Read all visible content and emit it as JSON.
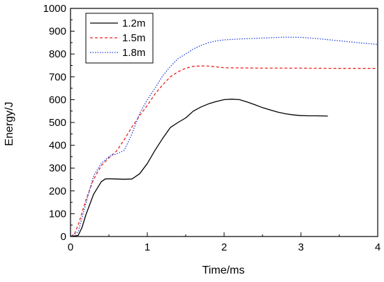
{
  "chart_data": {
    "type": "line",
    "title": "",
    "xlabel": "Time/ms",
    "ylabel": "Energy/J",
    "xlim": [
      0,
      4
    ],
    "ylim": [
      0,
      1000
    ],
    "xticks": [
      0,
      1,
      2,
      3,
      4
    ],
    "yticks": [
      0,
      100,
      200,
      300,
      400,
      500,
      600,
      700,
      800,
      900,
      1000
    ],
    "grid": false,
    "legend_position": "top-left",
    "series": [
      {
        "name": "1.2m",
        "color": "#000000",
        "dash": "solid",
        "x": [
          0.0,
          0.1,
          0.15,
          0.2,
          0.3,
          0.4,
          0.45,
          0.5,
          0.6,
          0.7,
          0.8,
          0.9,
          1.0,
          1.1,
          1.2,
          1.3,
          1.4,
          1.5,
          1.6,
          1.7,
          1.8,
          1.9,
          2.0,
          2.1,
          2.2,
          2.3,
          2.4,
          2.5,
          2.6,
          2.7,
          2.8,
          2.9,
          3.0,
          3.1,
          3.2,
          3.35
        ],
        "y": [
          0,
          5,
          40,
          95,
          185,
          240,
          252,
          253,
          252,
          251,
          252,
          275,
          320,
          378,
          430,
          478,
          500,
          520,
          550,
          568,
          582,
          592,
          600,
          602,
          600,
          590,
          578,
          565,
          555,
          545,
          538,
          533,
          530,
          529,
          529,
          528
        ]
      },
      {
        "name": "1.5m",
        "color": "#e8231f",
        "dash": "dashed",
        "x": [
          0.0,
          0.05,
          0.1,
          0.2,
          0.3,
          0.4,
          0.5,
          0.6,
          0.7,
          0.8,
          0.9,
          1.0,
          1.1,
          1.2,
          1.3,
          1.4,
          1.5,
          1.6,
          1.7,
          1.8,
          1.9,
          2.0,
          2.5,
          3.0,
          3.5,
          4.0
        ],
        "y": [
          0,
          10,
          50,
          160,
          250,
          310,
          345,
          375,
          425,
          480,
          530,
          575,
          625,
          665,
          700,
          722,
          738,
          746,
          748,
          747,
          744,
          740,
          738,
          738,
          737,
          737
        ]
      },
      {
        "name": "1.8m",
        "color": "#2440d8",
        "dash": "dotted",
        "x": [
          0.0,
          0.1,
          0.2,
          0.3,
          0.4,
          0.5,
          0.55,
          0.6,
          0.7,
          0.8,
          0.9,
          1.0,
          1.1,
          1.2,
          1.3,
          1.4,
          1.5,
          1.6,
          1.7,
          1.8,
          1.9,
          2.0,
          2.2,
          2.5,
          2.8,
          3.0,
          3.2,
          3.5,
          3.8,
          4.0
        ],
        "y": [
          0,
          20,
          145,
          265,
          320,
          350,
          358,
          362,
          378,
          450,
          540,
          600,
          650,
          705,
          745,
          780,
          800,
          822,
          838,
          850,
          858,
          862,
          866,
          870,
          874,
          873,
          868,
          858,
          848,
          842
        ]
      }
    ]
  }
}
